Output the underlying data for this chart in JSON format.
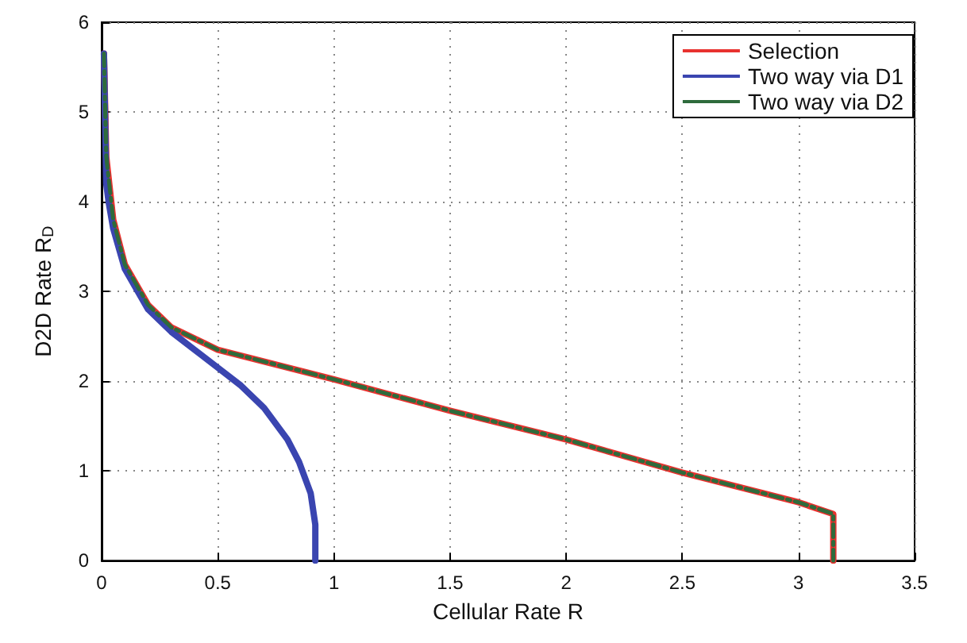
{
  "chart_data": {
    "type": "line",
    "xlabel": "Cellular Rate R",
    "ylabel": "D2D Rate R$_{D}$",
    "xlim": [
      0,
      3.5
    ],
    "xticks": [
      0,
      0.5,
      1,
      1.5,
      2,
      2.5,
      3,
      3.5
    ],
    "ylim": [
      0,
      6
    ],
    "yticks": [
      0,
      1,
      2,
      3,
      4,
      5,
      6
    ],
    "grid": true,
    "legend": "top right",
    "marker": "none",
    "series": [
      {
        "name": "Selection",
        "color": "#e8322f",
        "line_style": "solid",
        "x": [
          0.01,
          0.02,
          0.05,
          0.1,
          0.2,
          0.3,
          0.5,
          1,
          1.5,
          2,
          2.5,
          3,
          3.15,
          3.15
        ],
        "values": [
          5.65,
          4.5,
          3.8,
          3.3,
          2.85,
          2.6,
          2.35,
          2.02,
          1.67,
          1.35,
          0.98,
          0.65,
          0.52,
          0
        ]
      },
      {
        "name": "Two way via D1",
        "color": "#3a45b0",
        "line_style": "solid",
        "x": [
          0.01,
          0.02,
          0.03,
          0.05,
          0.1,
          0.2,
          0.3,
          0.4,
          0.5,
          0.6,
          0.7,
          0.8,
          0.85,
          0.9,
          0.92,
          0.92
        ],
        "values": [
          5.65,
          4.2,
          4.0,
          3.7,
          3.25,
          2.8,
          2.55,
          2.35,
          2.15,
          1.95,
          1.7,
          1.35,
          1.1,
          0.75,
          0.4,
          0
        ]
      },
      {
        "name": "Two way via D2",
        "color": "#2e6b3c",
        "line_style": "dashed",
        "x": [
          0.01,
          0.02,
          0.05,
          0.1,
          0.2,
          0.3,
          0.5,
          1,
          1.5,
          2,
          2.5,
          3,
          3.15,
          3.15
        ],
        "values": [
          5.65,
          4.5,
          3.8,
          3.3,
          2.85,
          2.6,
          2.35,
          2.02,
          1.67,
          1.35,
          0.98,
          0.65,
          0.52,
          0
        ]
      }
    ]
  }
}
